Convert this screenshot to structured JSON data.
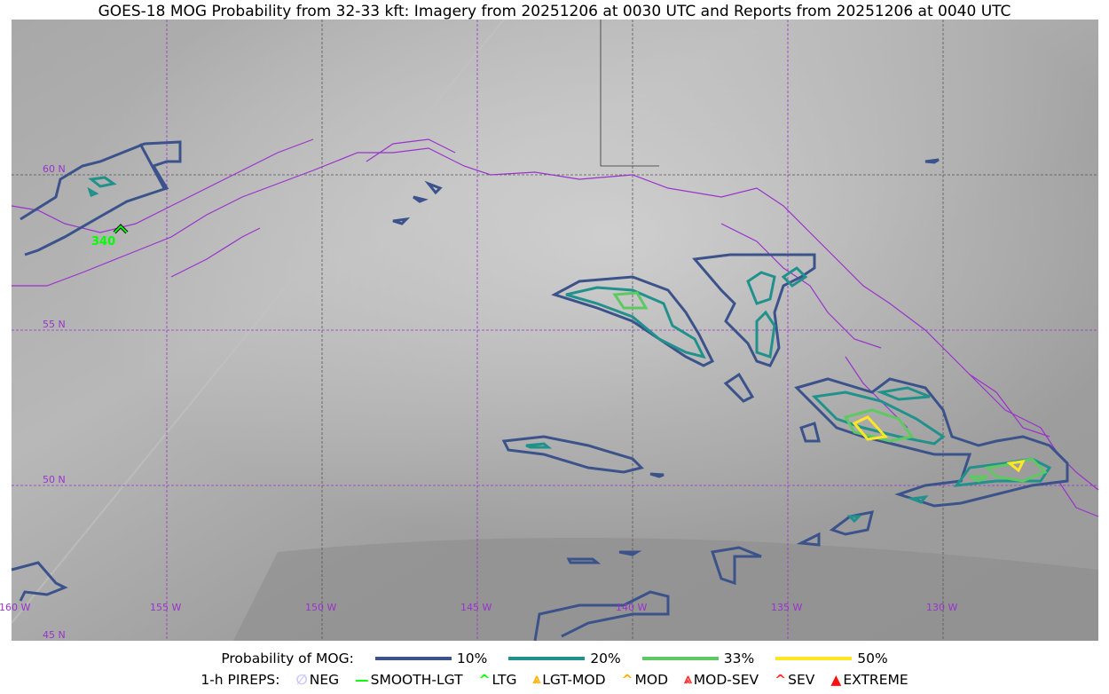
{
  "title": "GOES-18 MOG Probability from 32-33 kft: Imagery from 20251206 at 0030 UTC and Reports from 20251206 at 0040 UTC",
  "map": {
    "lat_labels": [
      "60 N",
      "55 N",
      "50 N",
      "45 N"
    ],
    "lon_labels": [
      "160 W",
      "155 W",
      "150 W",
      "145 W",
      "140 W",
      "135 W",
      "130 W"
    ],
    "pirep": {
      "type": "LTG",
      "label": "340",
      "icon": "chevron-up-icon",
      "color": "#00ff00"
    },
    "colors": {
      "coastline": "#9933cc",
      "grid": "#9933cc"
    }
  },
  "legend": {
    "prob_label": "Probability of MOG:",
    "levels": [
      {
        "label": "10%",
        "color": "#3b528b"
      },
      {
        "label": "20%",
        "color": "#21918c"
      },
      {
        "label": "33%",
        "color": "#5ec962"
      },
      {
        "label": "50%",
        "color": "#fde725"
      }
    ],
    "pirep_label": "1-h PIREPS:",
    "pireps": [
      {
        "label": "NEG",
        "symbol": "∅",
        "color": "#c8c8ff",
        "icon": "neg-icon"
      },
      {
        "label": "SMOOTH-LGT",
        "symbol": "—",
        "color": "#00ff00",
        "icon": "smooth-lgt-icon"
      },
      {
        "label": "LTG",
        "symbol": "^",
        "color": "#00ff00",
        "icon": "ltg-icon"
      },
      {
        "label": "LGT-MOD",
        "symbol": "⩓",
        "color": "#ffb000",
        "icon": "lgt-mod-icon"
      },
      {
        "label": "MOD",
        "symbol": "^",
        "color": "#ffb000",
        "icon": "mod-icon"
      },
      {
        "label": "MOD-SEV",
        "symbol": "⩓",
        "color": "#ff3030",
        "icon": "mod-sev-icon"
      },
      {
        "label": "SEV",
        "symbol": "^",
        "color": "#ff3030",
        "icon": "sev-icon"
      },
      {
        "label": "EXTREME",
        "symbol": "▲",
        "color": "#ff1010",
        "icon": "extreme-icon"
      }
    ]
  }
}
